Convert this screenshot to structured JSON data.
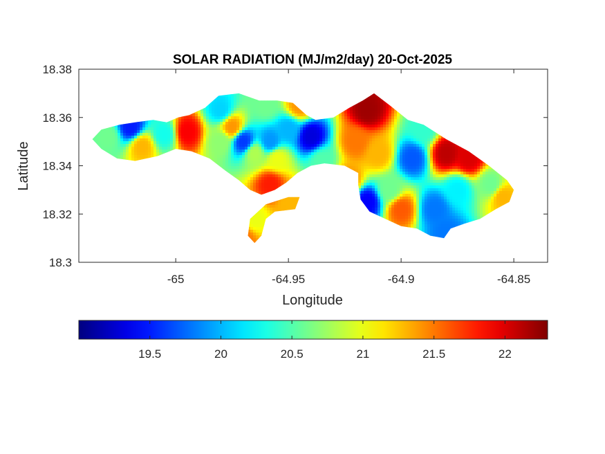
{
  "chart_data": {
    "type": "heatmap",
    "title": "SOLAR RADIATION (MJ/m2/day) 20-Oct-2025",
    "xlabel": "Longitude",
    "ylabel": "Latitude",
    "xlim": [
      -65.043,
      -64.835
    ],
    "ylim": [
      18.3,
      18.38
    ],
    "x_ticks": [
      -65,
      -64.95,
      -64.9,
      -64.85
    ],
    "x_tick_labels": [
      "-65",
      "-64.95",
      "-64.9",
      "-64.85"
    ],
    "y_ticks": [
      18.3,
      18.32,
      18.34,
      18.36,
      18.38
    ],
    "y_tick_labels": [
      "18.3",
      "18.32",
      "18.34",
      "18.36",
      "18.38"
    ],
    "colorbar": {
      "colormap": "jet",
      "orientation": "horizontal",
      "range": [
        19.0,
        22.3
      ],
      "ticks": [
        19.5,
        20,
        20.5,
        21,
        21.5,
        22
      ],
      "tick_labels": [
        "19.5",
        "20",
        "20.5",
        "21",
        "21.5",
        "22"
      ]
    },
    "field_points": [
      {
        "lon": -65.03,
        "lat": 18.352,
        "value": 20.6
      },
      {
        "lon": -65.02,
        "lat": 18.356,
        "value": 19.5
      },
      {
        "lon": -65.015,
        "lat": 18.348,
        "value": 21.3
      },
      {
        "lon": -65.005,
        "lat": 18.353,
        "value": 20.3
      },
      {
        "lon": -64.995,
        "lat": 18.354,
        "value": 21.9
      },
      {
        "lon": -64.98,
        "lat": 18.35,
        "value": 20.7
      },
      {
        "lon": -64.98,
        "lat": 18.363,
        "value": 20.1
      },
      {
        "lon": -64.975,
        "lat": 18.356,
        "value": 21.4
      },
      {
        "lon": -64.97,
        "lat": 18.35,
        "value": 19.6
      },
      {
        "lon": -64.965,
        "lat": 18.345,
        "value": 20.8
      },
      {
        "lon": -64.96,
        "lat": 18.365,
        "value": 20.6
      },
      {
        "lon": -64.958,
        "lat": 18.35,
        "value": 19.9
      },
      {
        "lon": -64.955,
        "lat": 18.343,
        "value": 21.0
      },
      {
        "lon": -64.95,
        "lat": 18.355,
        "value": 20.0
      },
      {
        "lon": -64.945,
        "lat": 18.365,
        "value": 21.4
      },
      {
        "lon": -64.94,
        "lat": 18.352,
        "value": 19.3
      },
      {
        "lon": -64.935,
        "lat": 18.342,
        "value": 20.5
      },
      {
        "lon": -64.958,
        "lat": 18.332,
        "value": 21.8
      },
      {
        "lon": -64.92,
        "lat": 18.35,
        "value": 21.5
      },
      {
        "lon": -64.915,
        "lat": 18.363,
        "value": 22.2
      },
      {
        "lon": -64.91,
        "lat": 18.345,
        "value": 21.3
      },
      {
        "lon": -64.915,
        "lat": 18.325,
        "value": 19.4
      },
      {
        "lon": -64.905,
        "lat": 18.33,
        "value": 20.6
      },
      {
        "lon": -64.895,
        "lat": 18.343,
        "value": 19.7
      },
      {
        "lon": -64.9,
        "lat": 18.322,
        "value": 21.6
      },
      {
        "lon": -64.89,
        "lat": 18.355,
        "value": 20.4
      },
      {
        "lon": -64.88,
        "lat": 18.345,
        "value": 22.1
      },
      {
        "lon": -64.87,
        "lat": 18.343,
        "value": 22.0
      },
      {
        "lon": -64.875,
        "lat": 18.33,
        "value": 20.2
      },
      {
        "lon": -64.885,
        "lat": 18.322,
        "value": 19.8
      },
      {
        "lon": -64.86,
        "lat": 18.332,
        "value": 20.6
      },
      {
        "lon": -64.855,
        "lat": 18.327,
        "value": 21.3
      },
      {
        "lon": -64.95,
        "lat": 18.325,
        "value": 21.3
      },
      {
        "lon": -64.965,
        "lat": 18.318,
        "value": 21.0
      },
      {
        "lon": -64.97,
        "lat": 18.31,
        "value": 21.5
      },
      {
        "lon": -64.88,
        "lat": 18.312,
        "value": 19.8
      },
      {
        "lon": -64.923,
        "lat": 18.334,
        "value": 21.4
      }
    ]
  }
}
